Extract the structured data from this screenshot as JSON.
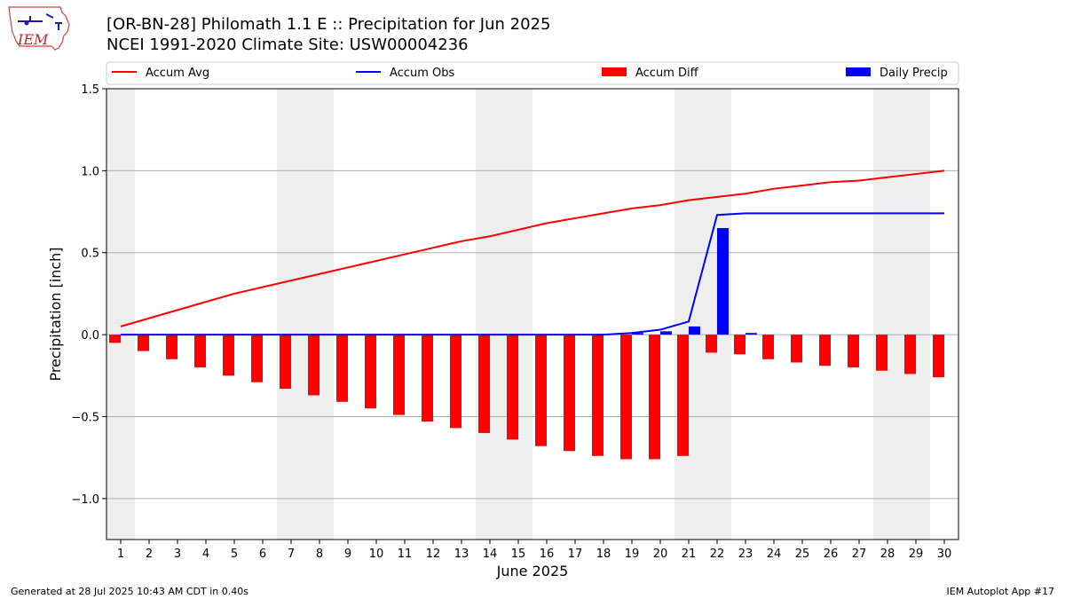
{
  "title_line1": "[OR-BN-28] Philomath 1.1 E :: Precipitation for Jun 2025",
  "title_line2": "NCEI 1991-2020 Climate Site: USW00004236",
  "logo_text": "IEM",
  "footer_left": "Generated at 28 Jul 2025 10:43 AM CDT in 0.40s",
  "footer_right": "IEM Autoplot App #17",
  "colors": {
    "avg": "#ff0000",
    "obs": "#0000ff",
    "diff": "#ff0000",
    "daily": "#0000ff",
    "weekend": "#eeeeee",
    "grid": "#b0b0b0"
  },
  "chart_data": {
    "type": "bar",
    "xlabel": "June 2025",
    "ylabel": "Precipitation [inch]",
    "ylim": [
      -1.25,
      1.5
    ],
    "yticks": [
      -1.0,
      -0.5,
      0.0,
      0.5,
      1.0,
      1.5
    ],
    "ytick_labels": [
      "−1.0",
      "−0.5",
      "0.0",
      "0.5",
      "1.0",
      "1.5"
    ],
    "x": [
      1,
      2,
      3,
      4,
      5,
      6,
      7,
      8,
      9,
      10,
      11,
      12,
      13,
      14,
      15,
      16,
      17,
      18,
      19,
      20,
      21,
      22,
      23,
      24,
      25,
      26,
      27,
      28,
      29,
      30
    ],
    "grid": "horizontal",
    "legend_position": "top",
    "weekend_days": [
      1,
      7,
      8,
      14,
      15,
      21,
      22,
      28,
      29
    ],
    "series": [
      {
        "name": "Accum Avg",
        "kind": "line",
        "values": [
          0.05,
          0.1,
          0.15,
          0.2,
          0.25,
          0.29,
          0.33,
          0.37,
          0.41,
          0.45,
          0.49,
          0.53,
          0.57,
          0.6,
          0.64,
          0.68,
          0.71,
          0.74,
          0.77,
          0.79,
          0.82,
          0.84,
          0.86,
          0.89,
          0.91,
          0.93,
          0.94,
          0.96,
          0.98,
          1.0
        ]
      },
      {
        "name": "Accum Obs",
        "kind": "line",
        "values": [
          0,
          0,
          0,
          0,
          0,
          0,
          0,
          0,
          0,
          0,
          0,
          0,
          0,
          0,
          0,
          0,
          0,
          0,
          0.01,
          0.03,
          0.08,
          0.73,
          0.74,
          0.74,
          0.74,
          0.74,
          0.74,
          0.74,
          0.74,
          0.74
        ]
      },
      {
        "name": "Accum Diff",
        "kind": "bar",
        "values": [
          -0.05,
          -0.1,
          -0.15,
          -0.2,
          -0.25,
          -0.29,
          -0.33,
          -0.37,
          -0.41,
          -0.45,
          -0.49,
          -0.53,
          -0.57,
          -0.6,
          -0.64,
          -0.68,
          -0.71,
          -0.74,
          -0.76,
          -0.76,
          -0.74,
          -0.11,
          -0.12,
          -0.15,
          -0.17,
          -0.19,
          -0.2,
          -0.22,
          -0.24,
          -0.26
        ]
      },
      {
        "name": "Daily Precip",
        "kind": "bar",
        "values": [
          0,
          0,
          0,
          0,
          0,
          0,
          0,
          0,
          0,
          0,
          0,
          0,
          0,
          0,
          0,
          0,
          0,
          0,
          0.01,
          0.02,
          0.05,
          0.65,
          0.01,
          0,
          0,
          0,
          0,
          0,
          0,
          0
        ]
      }
    ]
  }
}
